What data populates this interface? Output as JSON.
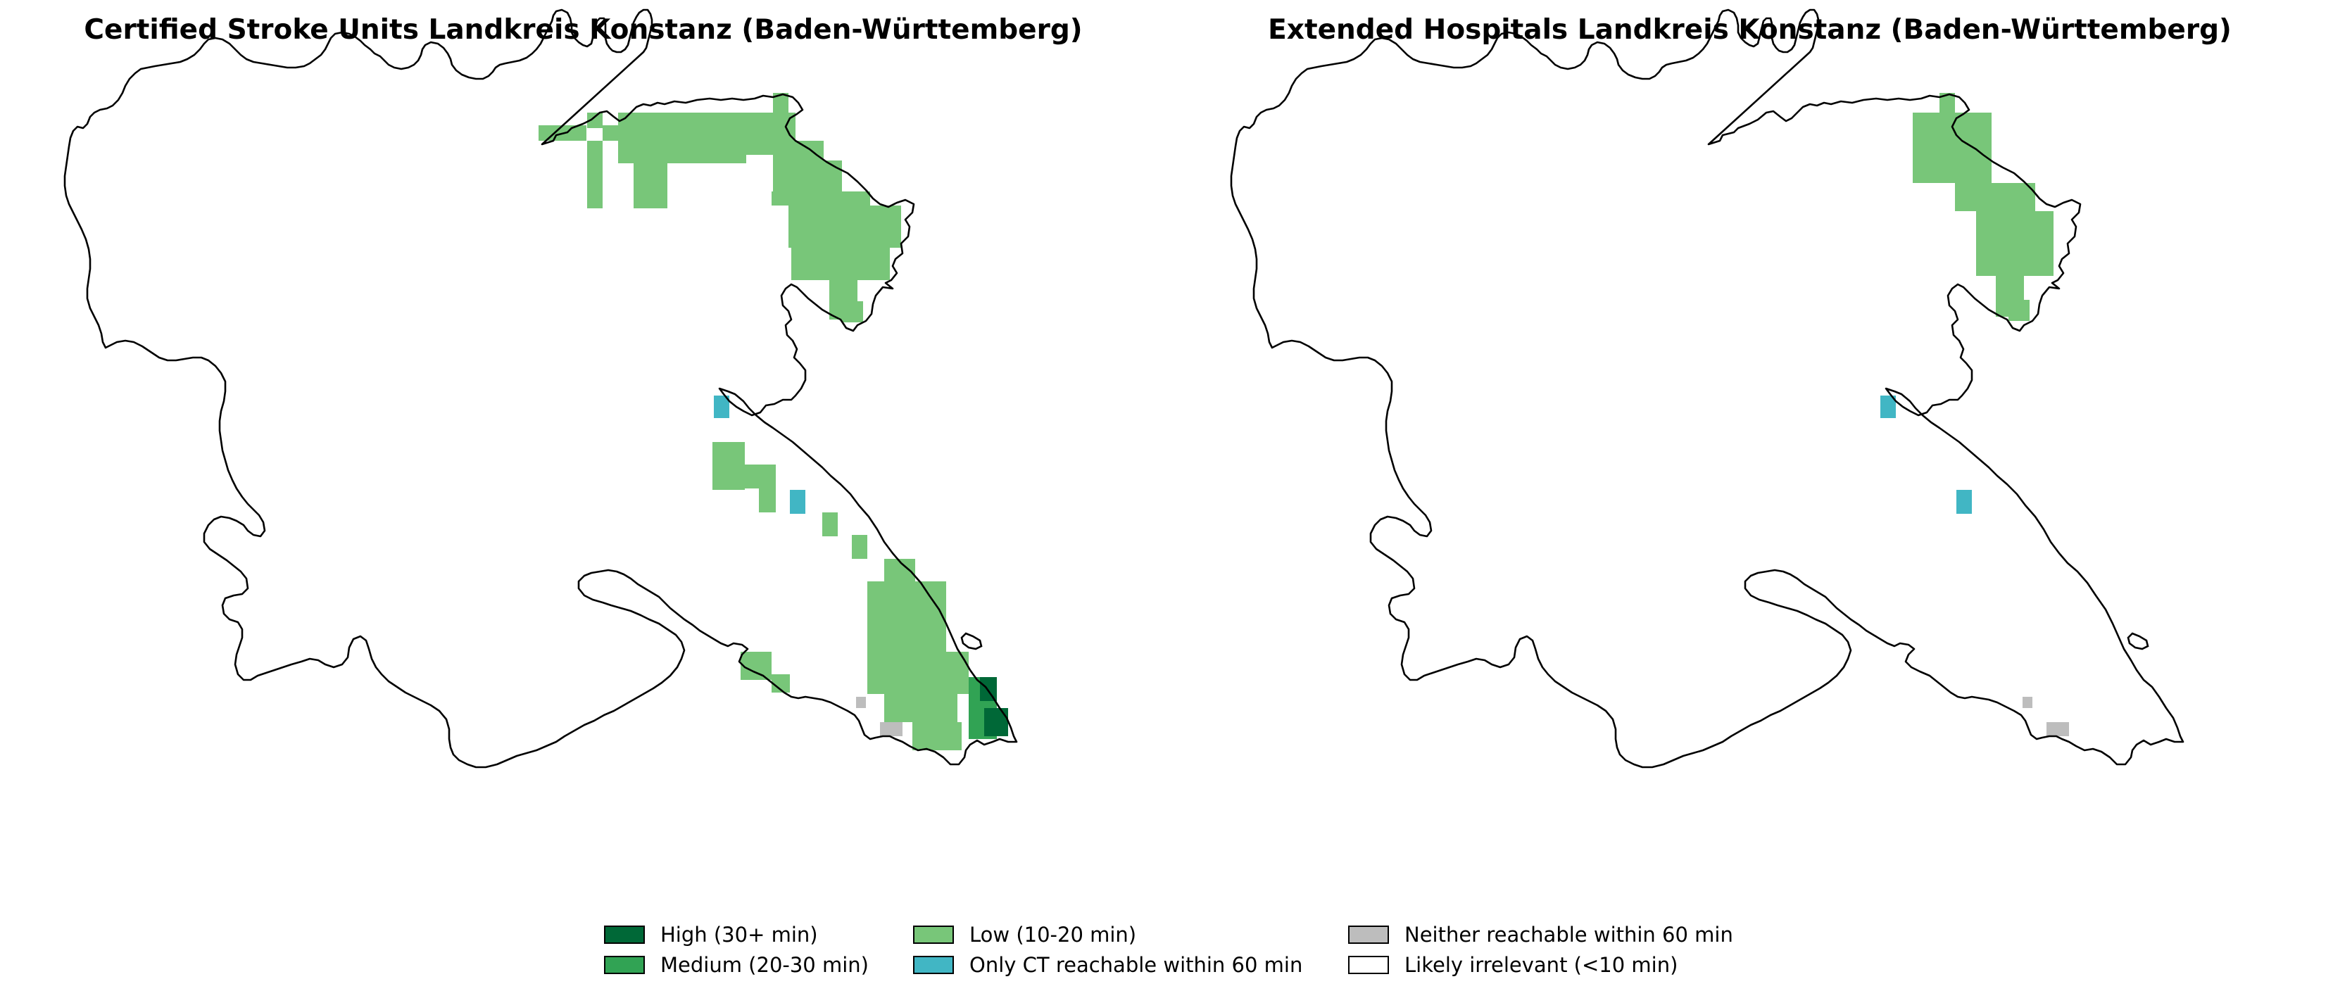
{
  "maps": [
    {
      "title": "Certified Stroke Units Landkreis Konstanz (Baden-Württemberg)"
    },
    {
      "title": "Extended Hospitals Landkreis Konstanz (Baden-Württemberg)"
    }
  ],
  "categories": {
    "high": {
      "label": "High (30+ min)",
      "color": "#006837"
    },
    "medium": {
      "label": "Medium (20-30 min)",
      "color": "#31a354"
    },
    "low": {
      "label": "Low (10-20 min)",
      "color": "#78c679"
    },
    "ct_only": {
      "label": "Only CT reachable within 60 min",
      "color": "#41b6c4"
    },
    "neither": {
      "label": "Neither reachable within 60 min",
      "color": "#bdbdbd"
    },
    "irrelevant": {
      "label": "Likely irrelevant (<10 min)",
      "color": "#ffffff"
    }
  },
  "legend_order": [
    "high",
    "medium",
    "low",
    "ct_only",
    "neither",
    "irrelevant"
  ]
}
